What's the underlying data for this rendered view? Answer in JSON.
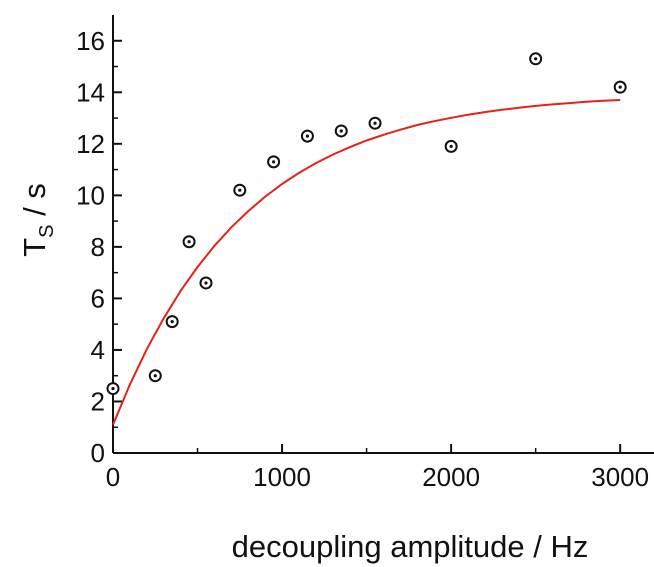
{
  "chart_data": {
    "type": "scatter",
    "title": "",
    "xlabel": "decoupling amplitude / Hz",
    "ylabel": {
      "main": "T",
      "sub": "S",
      "suffix": " / s"
    },
    "xlim": [
      0,
      3200
    ],
    "ylim": [
      0,
      17
    ],
    "xticks": [
      0,
      1000,
      2000,
      3000
    ],
    "yticks": [
      0,
      2,
      4,
      6,
      8,
      10,
      12,
      14,
      16
    ],
    "grid": false,
    "legend": "none",
    "series": [
      {
        "kind": "points",
        "marker": "circle-dot",
        "color": "#111111",
        "x": [
          0,
          250,
          350,
          450,
          550,
          750,
          950,
          1150,
          1350,
          1550,
          2000,
          2500,
          3000
        ],
        "y": [
          2.5,
          3.0,
          5.1,
          8.2,
          6.6,
          10.2,
          11.3,
          12.3,
          12.5,
          12.8,
          11.9,
          15.3,
          14.2
        ]
      },
      {
        "kind": "fit",
        "color": "#e8201c",
        "x": [
          0,
          100,
          200,
          300,
          400,
          500,
          600,
          700,
          800,
          900,
          1000,
          1100,
          1200,
          1300,
          1400,
          1500,
          1600,
          1700,
          1800,
          1900,
          2000,
          2100,
          2200,
          2300,
          2400,
          2500,
          2600,
          2700,
          2800,
          2900,
          3000
        ],
        "y": [
          1.1,
          2.66,
          4.03,
          5.23,
          6.29,
          7.22,
          8.04,
          8.76,
          9.39,
          9.95,
          10.44,
          10.87,
          11.25,
          11.58,
          11.87,
          12.13,
          12.35,
          12.55,
          12.73,
          12.88,
          13.01,
          13.13,
          13.23,
          13.32,
          13.4,
          13.47,
          13.53,
          13.58,
          13.63,
          13.67,
          13.7
        ]
      }
    ]
  }
}
